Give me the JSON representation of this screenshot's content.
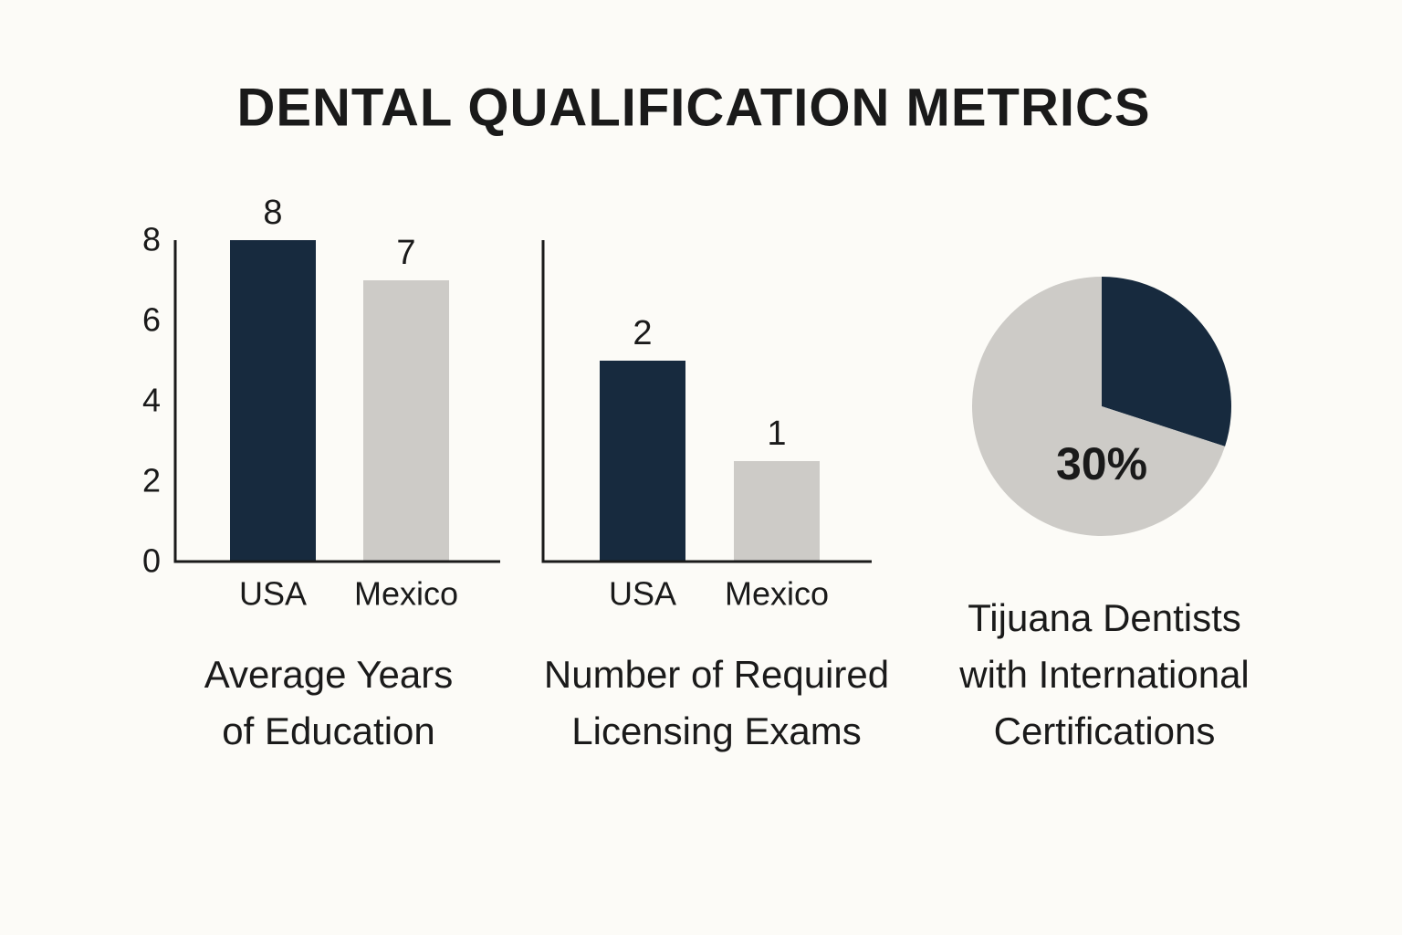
{
  "title": "DENTAL QUALIFICATION METRICS",
  "chart_data": [
    {
      "type": "bar",
      "title": [
        "Average Years",
        "of Education"
      ],
      "categories": [
        "USA",
        "Mexico"
      ],
      "values": [
        8,
        7
      ],
      "colors": [
        "#172a3e",
        "#cdcbc7"
      ],
      "ylim": [
        0,
        8
      ],
      "yticks": [
        0,
        2,
        4,
        6,
        8
      ]
    },
    {
      "type": "bar",
      "title": [
        "Number of Required",
        "Licensing Exams"
      ],
      "categories": [
        "USA",
        "Mexico"
      ],
      "values": [
        2,
        1
      ],
      "colors": [
        "#172a3e",
        "#cdcbc7"
      ],
      "ylim": [
        0,
        3.2
      ]
    },
    {
      "type": "pie",
      "title": [
        "Tijuana Dentists",
        "with International",
        "Certifications"
      ],
      "values": [
        30,
        70
      ],
      "value_labels": [
        "30%",
        null
      ],
      "colors": [
        "#172a3e",
        "#cdcbc7"
      ]
    }
  ]
}
